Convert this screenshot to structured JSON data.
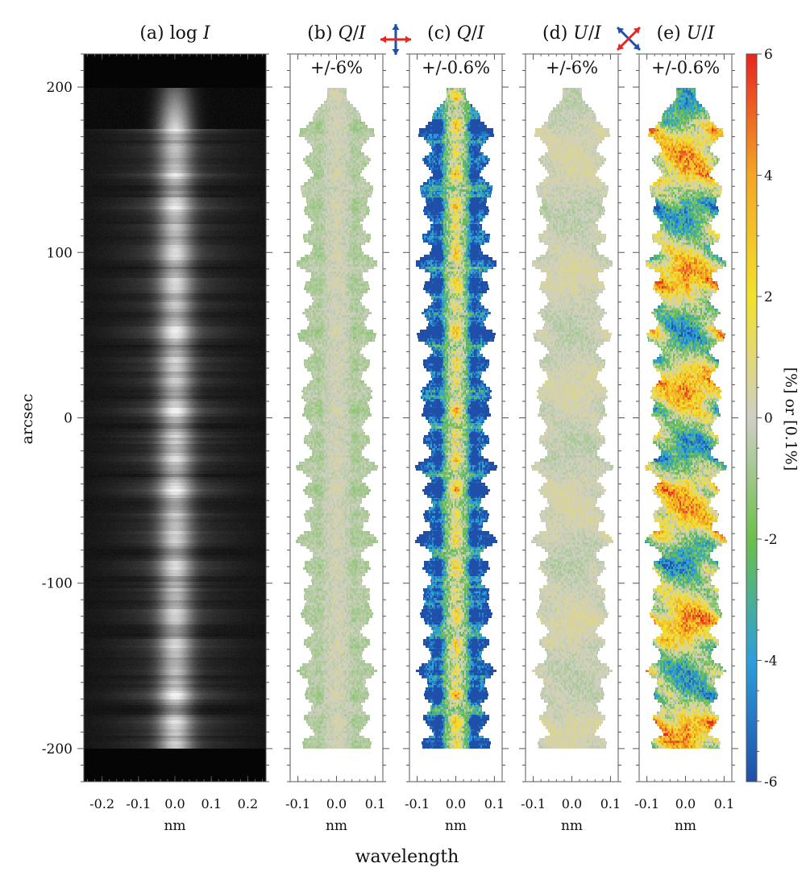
{
  "figure": {
    "xlabel": "wavelength",
    "ylabel": "arcsec",
    "yticks": [
      200,
      100,
      0,
      -100,
      -200
    ],
    "ylim": [
      -220,
      220
    ],
    "colorbar": {
      "label": "[%] or [0.1%]",
      "ticks": [
        6,
        4,
        2,
        0,
        -2,
        -4,
        -6
      ],
      "range": [
        -6,
        6
      ],
      "colors": [
        "#1f4fa8",
        "#2a9fdd",
        "#6cc04a",
        "#cfcfc3",
        "#f2e22a",
        "#f5a623",
        "#e8251f"
      ]
    },
    "arrow_colors": {
      "red": "#e8251f",
      "blue": "#1f4fa8"
    }
  },
  "panels": [
    {
      "id": "a",
      "prefix": "(a) log ",
      "var": "I",
      "slash": "",
      "var2": "",
      "scale_label": "",
      "xlabel": "nm",
      "xticks": [
        "-0.2",
        "-0.1",
        "0.0",
        "0.1",
        "0.2"
      ],
      "xlim": [
        -0.25,
        0.25
      ],
      "kind": "intensity"
    },
    {
      "id": "b",
      "prefix": "(b) ",
      "var": "Q",
      "slash": "/",
      "var2": "I",
      "scale_label": "+/-6%",
      "xlabel": "nm",
      "xticks": [
        "-0.1",
        "0.0",
        "0.1"
      ],
      "xlim": [
        -0.12,
        0.12
      ],
      "kind": "q",
      "scale": 1
    },
    {
      "id": "c",
      "prefix": "(c) ",
      "var": "Q",
      "slash": "/",
      "var2": "I",
      "scale_label": "+/-0.6%",
      "xlabel": "nm",
      "xticks": [
        "-0.1",
        "0.0",
        "0.1"
      ],
      "xlim": [
        -0.12,
        0.12
      ],
      "kind": "q",
      "scale": 10
    },
    {
      "id": "d",
      "prefix": "(d) ",
      "var": "U",
      "slash": "/",
      "var2": "I",
      "scale_label": "+/-6%",
      "xlabel": "nm",
      "xticks": [
        "-0.1",
        "0.0",
        "0.1"
      ],
      "xlim": [
        -0.12,
        0.12
      ],
      "kind": "u",
      "scale": 1
    },
    {
      "id": "e",
      "prefix": "(e) ",
      "var": "U",
      "slash": "/",
      "var2": "I",
      "scale_label": "+/-0.6%",
      "xlabel": "nm",
      "xticks": [
        "-0.1",
        "0.0",
        "0.1"
      ],
      "xlim": [
        -0.12,
        0.12
      ],
      "kind": "u",
      "scale": 10
    }
  ],
  "chart_data": {
    "type": "heatmap",
    "title": "",
    "xlabel": "wavelength",
    "x_unit": "nm",
    "ylabel": "arcsec",
    "ylim": [
      -220,
      220
    ],
    "signal_extent_arcsec": [
      -200,
      200
    ],
    "panels": [
      {
        "label": "(a) log I",
        "quantity": "log I",
        "xlim": [
          -0.25,
          0.25
        ],
        "colormap": "grayscale"
      },
      {
        "label": "(b) Q/I",
        "quantity": "Q/I",
        "range_label": "+/-6%",
        "xlim": [
          -0.12,
          0.12
        ],
        "colormap": "blue-green-gray-yellow-red"
      },
      {
        "label": "(c) Q/I",
        "quantity": "Q/I",
        "range_label": "+/-0.6%",
        "xlim": [
          -0.12,
          0.12
        ],
        "colormap": "blue-green-gray-yellow-red"
      },
      {
        "label": "(d) U/I",
        "quantity": "U/I",
        "range_label": "+/-6%",
        "xlim": [
          -0.12,
          0.12
        ],
        "colormap": "blue-green-gray-yellow-red"
      },
      {
        "label": "(e) U/I",
        "quantity": "U/I",
        "range_label": "+/-0.6%",
        "xlim": [
          -0.12,
          0.12
        ],
        "colormap": "blue-green-gray-yellow-red"
      }
    ],
    "colorbar": {
      "ticks": [
        -6,
        -4,
        -2,
        0,
        2,
        4,
        6
      ],
      "label": "[%] or [0.1%]"
    }
  }
}
